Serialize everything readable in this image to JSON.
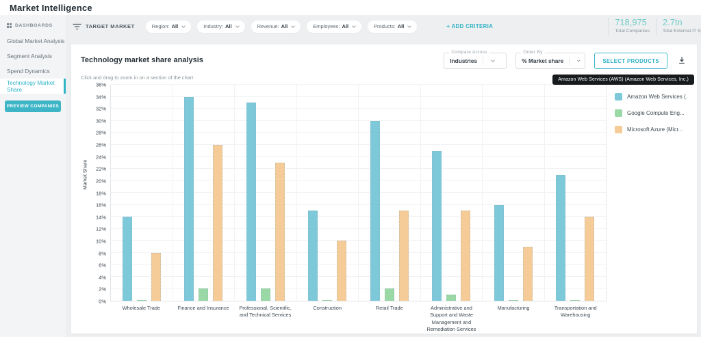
{
  "header": {
    "title": "Market Intelligence"
  },
  "sidebar": {
    "section_label": "DASHBOARDS",
    "items": [
      {
        "label": "Global Market Analysis"
      },
      {
        "label": "Segment Analysis"
      },
      {
        "label": "Spend Dynamics"
      },
      {
        "label": "Technology Market Share"
      }
    ],
    "preview_button": "PREVIEW COMPANIES"
  },
  "filter_bar": {
    "target_market_label": "TARGET MARKET",
    "pills": [
      {
        "label": "Region:",
        "value": "All"
      },
      {
        "label": "Industry:",
        "value": "All"
      },
      {
        "label": "Revenue:",
        "value": "All"
      },
      {
        "label": "Employees:",
        "value": "All"
      },
      {
        "label": "Products:",
        "value": "All"
      }
    ],
    "add_criteria": {
      "icon": "+",
      "label": "ADD CRITERIA"
    },
    "stats": [
      {
        "value": "718,975",
        "label": "Total Companies"
      },
      {
        "value": "2.7tn",
        "label": "Total External IT Spend"
      }
    ]
  },
  "panel": {
    "title": "Technology market share analysis",
    "hint": "Click and drag to zoom in on a section of the chart",
    "compare_across": {
      "label": "Compare Across",
      "value": "Industries"
    },
    "order_by": {
      "label": "Order By",
      "value": "% Market share"
    },
    "select_products_label": "SELECT PRODUCTS",
    "download_icon": "download-icon",
    "tooltip": "Amazon Web Services (AWS) (Amazon Web Services, Inc.)"
  },
  "colors": {
    "accent_teal": "#2eb5c6",
    "stat_teal": "#6fcac5",
    "tooltip_bg": "#171b1e"
  },
  "chart_data": {
    "type": "bar",
    "title": "Technology market share analysis",
    "xlabel": "",
    "ylabel": "Market Share",
    "ylim": [
      0,
      36
    ],
    "ytick_step": 2,
    "ytick_suffix": "%",
    "grid": true,
    "legend_position": "right",
    "categories": [
      "Wholesale Trade",
      "Finance and Insurance",
      "Professional, Scientific, and Technical Services",
      "Construction",
      "Retail Trade",
      "Administrative and Support and Waste Management and Remediation Services",
      "Manufacturing",
      "Transportation and Warehousing"
    ],
    "series": [
      {
        "name": "Amazon Web Services (...",
        "color": "#7dc9da",
        "values": [
          14,
          34,
          33,
          15,
          30,
          25,
          16,
          21
        ]
      },
      {
        "name": "Google Compute Eng...",
        "color": "#9ad8a5",
        "values": [
          0.1,
          2,
          2,
          0.1,
          2,
          1,
          0.1,
          0.1
        ]
      },
      {
        "name": "Microsoft Azure (Micr...",
        "color": "#f5cb98",
        "values": [
          8,
          26,
          23,
          10,
          15,
          15,
          9,
          14
        ]
      }
    ]
  }
}
